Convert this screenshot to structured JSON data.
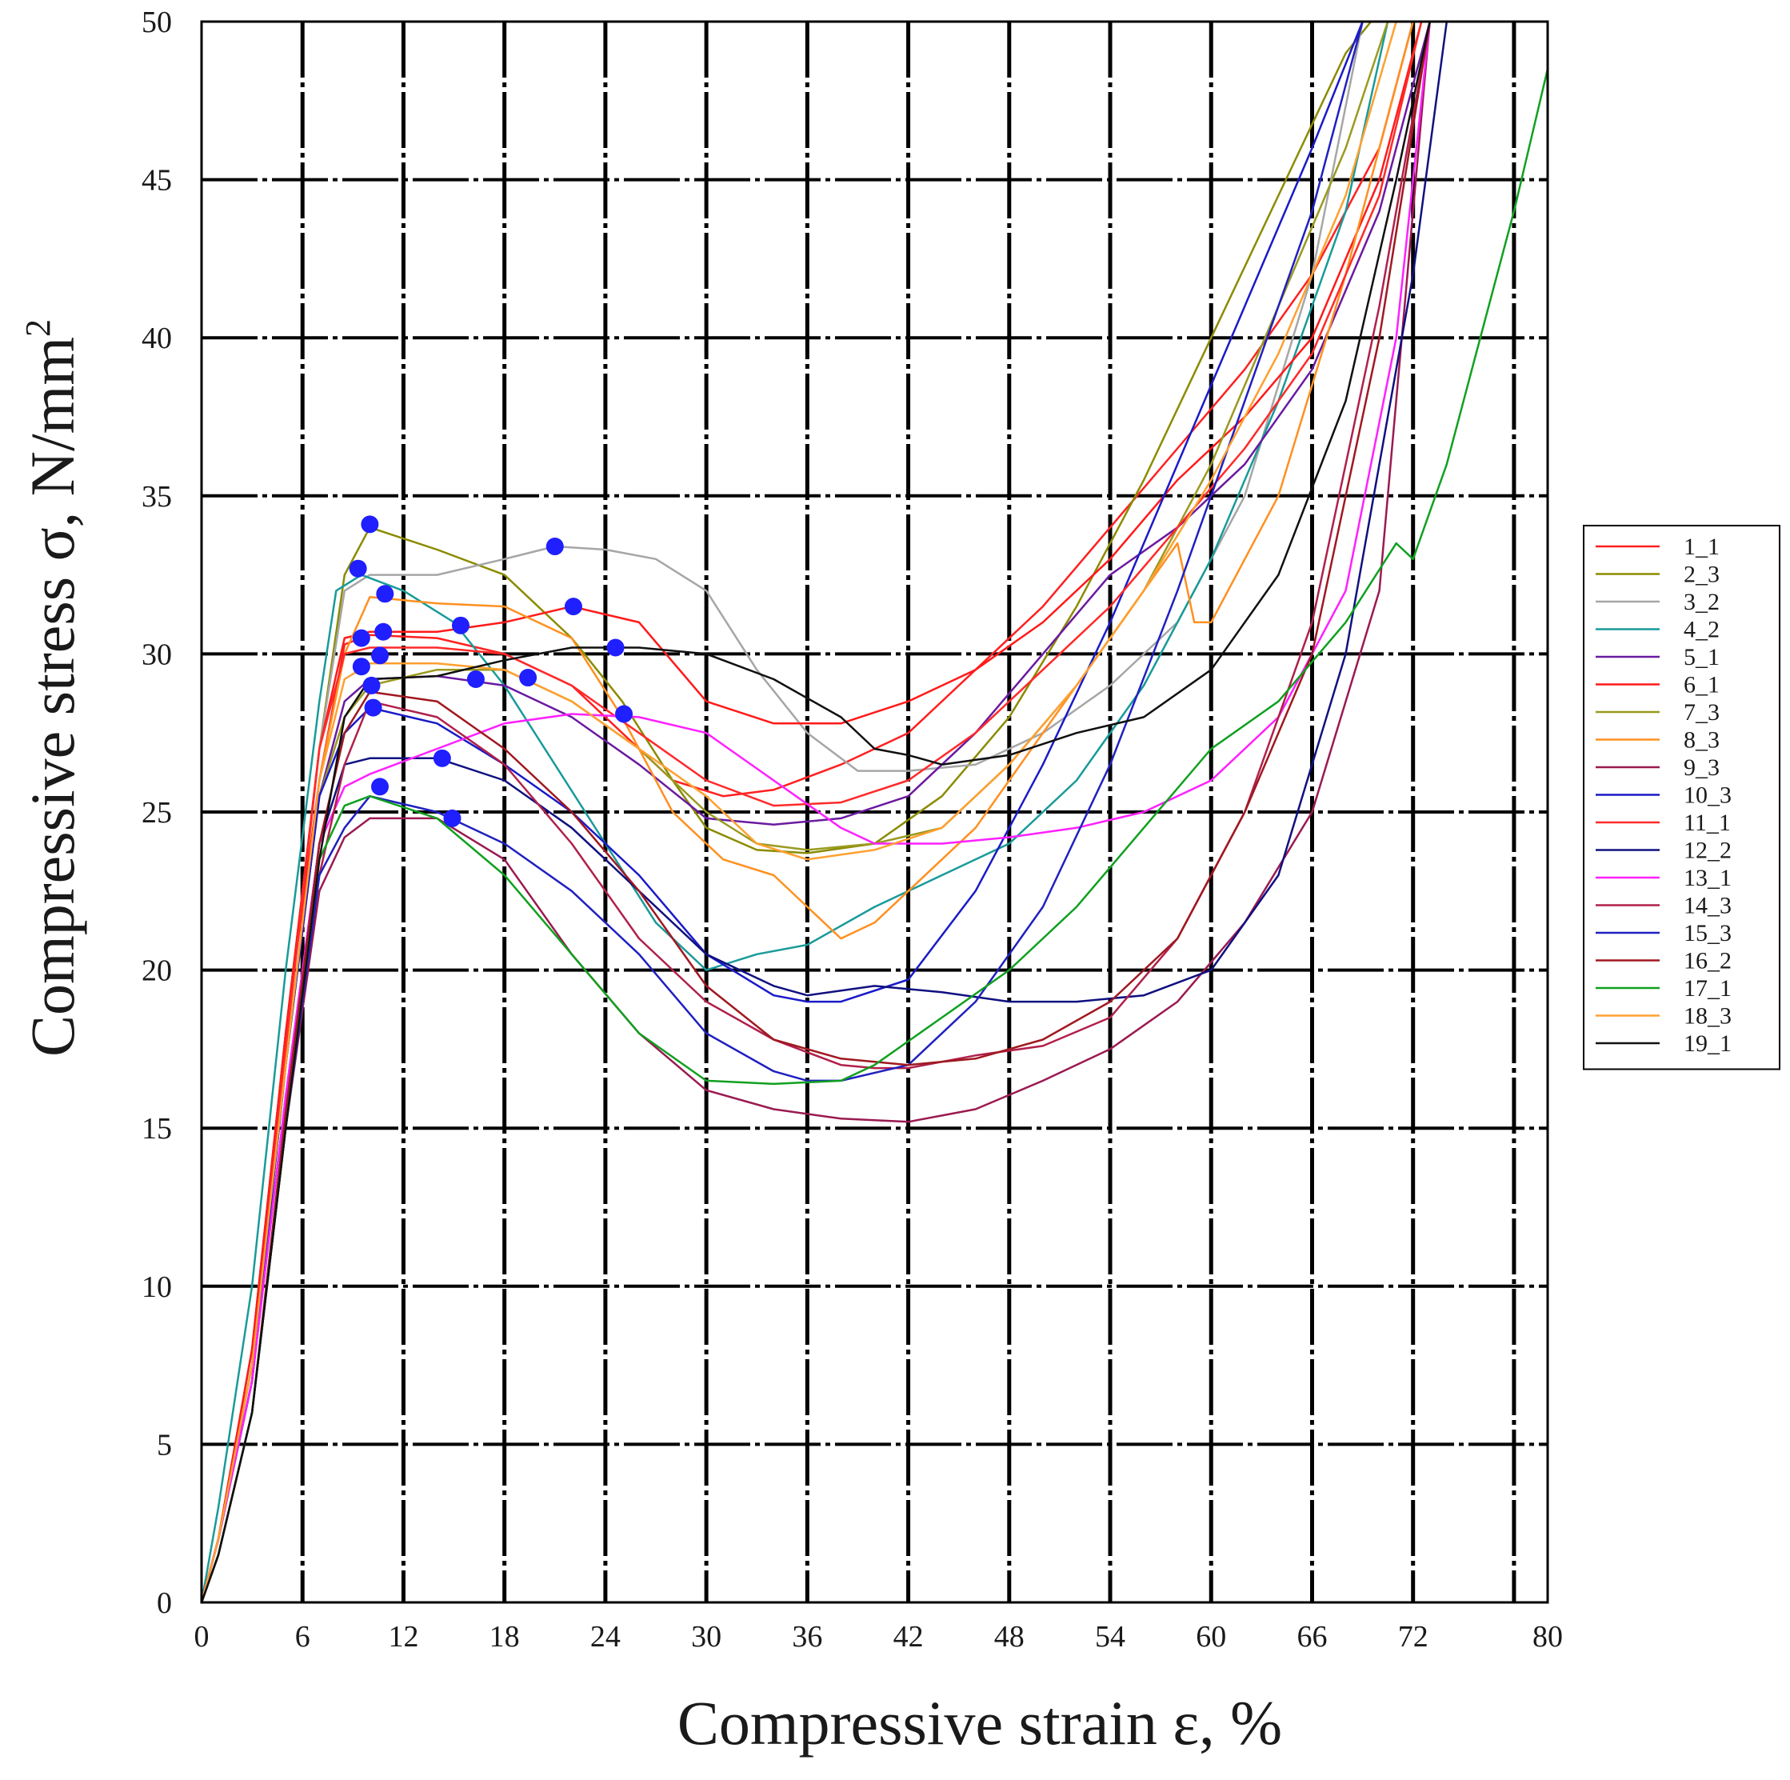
{
  "chart_data": {
    "type": "line",
    "title": "",
    "xlabel": "Compressive strain ε, %",
    "ylabel": "Compressive stress σ, N/mm",
    "ylabel_superscript": "2",
    "xlim": [
      0,
      80
    ],
    "ylim": [
      0,
      50
    ],
    "x_ticks": [
      0,
      6,
      12,
      18,
      24,
      30,
      36,
      42,
      48,
      54,
      60,
      66,
      72,
      80
    ],
    "x_grid": [
      6,
      12,
      18,
      24,
      30,
      36,
      42,
      48,
      54,
      60,
      66,
      72,
      78
    ],
    "y_ticks": [
      0,
      5,
      10,
      15,
      20,
      25,
      30,
      35,
      40,
      45,
      50
    ],
    "grid": true,
    "legend_position": "right",
    "marker_color": "#1f1fff",
    "series": [
      {
        "name": "1_1",
        "color": "#ff2020",
        "x": [
          0,
          1,
          3,
          5,
          7,
          8.5,
          10,
          14,
          18,
          22,
          25,
          28,
          31,
          34,
          38,
          42,
          46,
          50,
          54,
          58,
          62,
          66,
          70,
          72
        ],
        "y": [
          0,
          2,
          8,
          18,
          26,
          30.3,
          30.6,
          30.5,
          30,
          29,
          27.5,
          26,
          25.5,
          25.7,
          26.5,
          27.5,
          29.5,
          31.5,
          34,
          36.5,
          39,
          42,
          46,
          50
        ]
      },
      {
        "name": "2_3",
        "color": "#8b8b00",
        "x": [
          0,
          1,
          3,
          5,
          7,
          8.5,
          10,
          14,
          18,
          22,
          25,
          28,
          30,
          33,
          36,
          40,
          44,
          48,
          52,
          56,
          60,
          64,
          68,
          69.5
        ],
        "y": [
          0,
          2,
          8,
          18,
          27,
          32.5,
          34,
          33.3,
          32.5,
          30.5,
          28.5,
          26,
          24.5,
          23.8,
          23.7,
          24,
          25.5,
          28,
          31.5,
          35.5,
          40,
          44.5,
          49,
          50
        ]
      },
      {
        "name": "3_2",
        "color": "#a6a6a6",
        "x": [
          0,
          1,
          3,
          5,
          7,
          8.5,
          10,
          14,
          18,
          21,
          24,
          27,
          30,
          33,
          36,
          39,
          42,
          46,
          50,
          54,
          58,
          62,
          66,
          69
        ],
        "y": [
          0,
          2,
          8,
          18,
          27,
          32,
          32.5,
          32.5,
          33,
          33.4,
          33.3,
          33,
          32,
          29.5,
          27.5,
          26.3,
          26.3,
          26.5,
          27.5,
          29,
          31,
          35,
          42,
          50
        ]
      },
      {
        "name": "4_2",
        "color": "#1a9a9a",
        "x": [
          0,
          1,
          3,
          5,
          7,
          8,
          9.5,
          12,
          15,
          18,
          21,
          24,
          27,
          30,
          33,
          36,
          40,
          44,
          48,
          52,
          56,
          60,
          64,
          68,
          70.5
        ],
        "y": [
          0,
          3,
          10,
          20,
          28.5,
          32,
          32.5,
          32,
          31,
          29,
          26.5,
          24,
          21.5,
          20,
          20.5,
          20.8,
          22,
          23,
          24,
          26,
          29,
          33,
          38,
          44,
          50
        ]
      },
      {
        "name": "5_1",
        "color": "#6a1aa0",
        "x": [
          0,
          1,
          3,
          5,
          7,
          8.5,
          10,
          14,
          18,
          22,
          26,
          30,
          34,
          38,
          42,
          46,
          50,
          54,
          58,
          62,
          66,
          70,
          73
        ],
        "y": [
          0,
          2,
          7,
          17,
          25.5,
          28.5,
          29.2,
          29.3,
          29,
          28,
          26.5,
          24.8,
          24.6,
          24.8,
          25.5,
          27.5,
          30,
          32.5,
          34,
          36,
          39,
          44,
          50
        ]
      },
      {
        "name": "6_1",
        "color": "#ff1a1a",
        "x": [
          0,
          1,
          3,
          5,
          7,
          8.5,
          10,
          14,
          18,
          22,
          26,
          30,
          34,
          38,
          42,
          46,
          50,
          54,
          58,
          62,
          66,
          70,
          72.5
        ],
        "y": [
          0,
          2,
          8,
          18,
          27,
          30.5,
          30.7,
          30.7,
          31,
          31.5,
          31,
          28.5,
          27.8,
          27.8,
          28.5,
          29.5,
          31,
          33,
          35.5,
          37.5,
          40,
          45,
          50
        ]
      },
      {
        "name": "7_3",
        "color": "#9a9a20",
        "x": [
          0,
          1,
          3,
          5,
          7,
          8.5,
          10,
          14,
          18,
          22,
          26,
          30,
          33,
          36,
          40,
          44,
          48,
          52,
          56,
          60,
          64,
          68,
          70.5
        ],
        "y": [
          0,
          2,
          7,
          17,
          25.5,
          28,
          29,
          29.5,
          29.5,
          28.5,
          27,
          25,
          24,
          23.8,
          24,
          24.5,
          26.5,
          29,
          32,
          36,
          41,
          46,
          50
        ]
      },
      {
        "name": "8_3",
        "color": "#ff9020",
        "x": [
          0,
          1,
          3,
          5,
          7,
          8.5,
          10,
          14,
          18,
          22,
          25,
          28,
          31,
          34,
          36,
          38,
          40,
          42,
          46,
          50,
          54,
          58,
          59,
          60,
          64,
          68,
          72
        ],
        "y": [
          0,
          2,
          7,
          17,
          26,
          30,
          31.8,
          31.6,
          31.5,
          30.5,
          28,
          25,
          23.5,
          23,
          22,
          21,
          21.5,
          22.5,
          24.5,
          27.5,
          30.5,
          33.5,
          31,
          31,
          35,
          42,
          50
        ]
      },
      {
        "name": "9_3",
        "color": "#9a1a50",
        "x": [
          0,
          1,
          3,
          5,
          7,
          8.5,
          10,
          14,
          18,
          22,
          26,
          30,
          34,
          38,
          42,
          46,
          50,
          54,
          58,
          62,
          66,
          70,
          73
        ],
        "y": [
          0,
          1.5,
          6,
          15,
          22.5,
          24.2,
          24.8,
          24.8,
          23.5,
          20.5,
          18,
          16.2,
          15.6,
          15.3,
          15.2,
          15.6,
          16.5,
          17.5,
          19,
          21.5,
          25,
          32,
          50
        ]
      },
      {
        "name": "10_3",
        "color": "#1a1ac8",
        "x": [
          0,
          1,
          3,
          5,
          7,
          8.5,
          10,
          14,
          18,
          22,
          26,
          30,
          34,
          36,
          38,
          42,
          46,
          50,
          54,
          58,
          62,
          66,
          69
        ],
        "y": [
          0,
          2,
          7,
          17,
          25.5,
          27.5,
          28.3,
          27.8,
          26.5,
          25,
          23,
          20.5,
          19.2,
          19,
          19,
          19.7,
          22.5,
          26.5,
          31,
          36,
          41,
          46,
          50
        ]
      },
      {
        "name": "11_1",
        "color": "#ff2a2a",
        "x": [
          0,
          1,
          3,
          5,
          7,
          8.5,
          10,
          14,
          18,
          22,
          26,
          30,
          34,
          38,
          42,
          46,
          50,
          54,
          58,
          62,
          66,
          70,
          72.5
        ],
        "y": [
          0,
          2,
          7.5,
          17.5,
          27,
          30,
          30.2,
          30.2,
          30,
          29,
          27.5,
          26,
          25.2,
          25.3,
          26,
          27.5,
          29.5,
          31.5,
          34,
          36.5,
          39.5,
          44.5,
          50
        ]
      },
      {
        "name": "12_2",
        "color": "#101080",
        "x": [
          0,
          1,
          3,
          5,
          7,
          8.5,
          10,
          14,
          18,
          22,
          26,
          30,
          34,
          36,
          40,
          44,
          48,
          52,
          56,
          60,
          64,
          68,
          72,
          74
        ],
        "y": [
          0,
          2,
          7,
          16,
          24,
          26.5,
          26.7,
          26.7,
          26,
          24.5,
          22.5,
          20.5,
          19.5,
          19.2,
          19.5,
          19.3,
          19,
          19,
          19.2,
          20,
          23,
          30,
          42,
          50
        ]
      },
      {
        "name": "13_1",
        "color": "#ff20ff",
        "x": [
          0,
          1,
          3,
          5,
          7,
          8.5,
          10,
          14,
          18,
          22,
          26,
          30,
          34,
          38,
          40,
          44,
          48,
          52,
          56,
          60,
          64,
          68,
          71,
          73
        ],
        "y": [
          0,
          2,
          7,
          16,
          24,
          25.8,
          26.2,
          27,
          27.8,
          28.1,
          28,
          27.5,
          26,
          24.5,
          24,
          24,
          24.2,
          24.5,
          25,
          26,
          28,
          32,
          40,
          50
        ]
      },
      {
        "name": "14_3",
        "color": "#b0204a",
        "x": [
          0,
          1,
          3,
          5,
          7,
          8.5,
          10,
          14,
          18,
          22,
          26,
          30,
          34,
          38,
          40,
          42,
          46,
          50,
          54,
          58,
          62,
          66,
          70,
          73
        ],
        "y": [
          0,
          1.5,
          6,
          15,
          23,
          26.5,
          28.5,
          28,
          26.5,
          24,
          21,
          19,
          17.8,
          17,
          16.9,
          16.9,
          17.3,
          17.6,
          18.5,
          21,
          25,
          31,
          41,
          50
        ]
      },
      {
        "name": "15_3",
        "color": "#2020c0",
        "x": [
          0,
          1,
          3,
          5,
          7,
          8.5,
          10,
          14,
          18,
          22,
          26,
          30,
          34,
          36,
          38,
          42,
          46,
          50,
          54,
          58,
          62,
          66,
          69
        ],
        "y": [
          0,
          1.5,
          6,
          15,
          23,
          24.5,
          25.5,
          25,
          24,
          22.5,
          20.5,
          18,
          16.8,
          16.5,
          16.5,
          17,
          19,
          22,
          26.5,
          32,
          38,
          44,
          50
        ]
      },
      {
        "name": "16_2",
        "color": "#a01820",
        "x": [
          0,
          1,
          3,
          5,
          7,
          8.5,
          10,
          14,
          18,
          22,
          26,
          30,
          34,
          38,
          42,
          46,
          50,
          54,
          58,
          62,
          66,
          70,
          73
        ],
        "y": [
          0,
          1.5,
          6,
          15.5,
          24,
          27.5,
          28.8,
          28.5,
          27,
          25,
          22.5,
          19.5,
          17.8,
          17.2,
          17,
          17.2,
          17.8,
          19,
          21,
          25,
          30,
          40,
          50
        ]
      },
      {
        "name": "17_1",
        "color": "#10a020",
        "x": [
          0,
          1,
          3,
          5,
          7,
          8.5,
          10,
          14,
          18,
          22,
          26,
          30,
          34,
          38,
          40,
          44,
          48,
          52,
          56,
          60,
          64,
          68,
          71,
          72,
          74,
          76,
          78,
          80
        ],
        "y": [
          0,
          1.5,
          6,
          15,
          23.5,
          25.2,
          25.5,
          24.8,
          23,
          20.5,
          18,
          16.5,
          16.4,
          16.5,
          17,
          18.5,
          20,
          22,
          24.5,
          27,
          28.5,
          31,
          33.5,
          33,
          36,
          40,
          44,
          48.5
        ]
      },
      {
        "name": "18_3",
        "color": "#ffa030",
        "x": [
          0,
          1,
          3,
          5,
          7,
          8.5,
          10,
          14,
          18,
          22,
          26,
          30,
          33,
          36,
          40,
          44,
          48,
          52,
          56,
          60,
          64,
          68,
          71
        ],
        "y": [
          0,
          2,
          7.5,
          17,
          26,
          29.2,
          29.7,
          29.7,
          29.5,
          28.5,
          27,
          25.5,
          24,
          23.5,
          23.8,
          24.5,
          26.5,
          29,
          32,
          35.5,
          39.5,
          44.5,
          50
        ]
      },
      {
        "name": "19_1",
        "color": "#101010",
        "x": [
          0,
          1,
          3,
          5,
          7,
          8.5,
          10,
          14,
          18,
          22,
          26,
          30,
          34,
          38,
          40,
          42,
          44,
          48,
          52,
          56,
          60,
          64,
          68,
          71,
          73
        ],
        "y": [
          0,
          1.5,
          6,
          15,
          23.5,
          28,
          29.2,
          29.3,
          29.8,
          30.2,
          30.2,
          30,
          29.2,
          28,
          27,
          26.8,
          26.5,
          26.8,
          27.5,
          28,
          29.5,
          32.5,
          38,
          45,
          50
        ]
      }
    ],
    "markers": [
      {
        "x": 10,
        "y": 34.1
      },
      {
        "x": 9.3,
        "y": 32.7
      },
      {
        "x": 21,
        "y": 33.4
      },
      {
        "x": 10.9,
        "y": 31.9
      },
      {
        "x": 22.1,
        "y": 31.5
      },
      {
        "x": 9.5,
        "y": 30.5
      },
      {
        "x": 10.8,
        "y": 30.7
      },
      {
        "x": 15.4,
        "y": 30.9
      },
      {
        "x": 24.6,
        "y": 30.2
      },
      {
        "x": 10.6,
        "y": 29.95
      },
      {
        "x": 9.5,
        "y": 29.6
      },
      {
        "x": 10.1,
        "y": 29.0
      },
      {
        "x": 16.3,
        "y": 29.2
      },
      {
        "x": 19.4,
        "y": 29.25
      },
      {
        "x": 10.2,
        "y": 28.3
      },
      {
        "x": 25.1,
        "y": 28.1
      },
      {
        "x": 14.3,
        "y": 26.7
      },
      {
        "x": 10.6,
        "y": 25.8
      },
      {
        "x": 14.9,
        "y": 24.8
      }
    ]
  }
}
